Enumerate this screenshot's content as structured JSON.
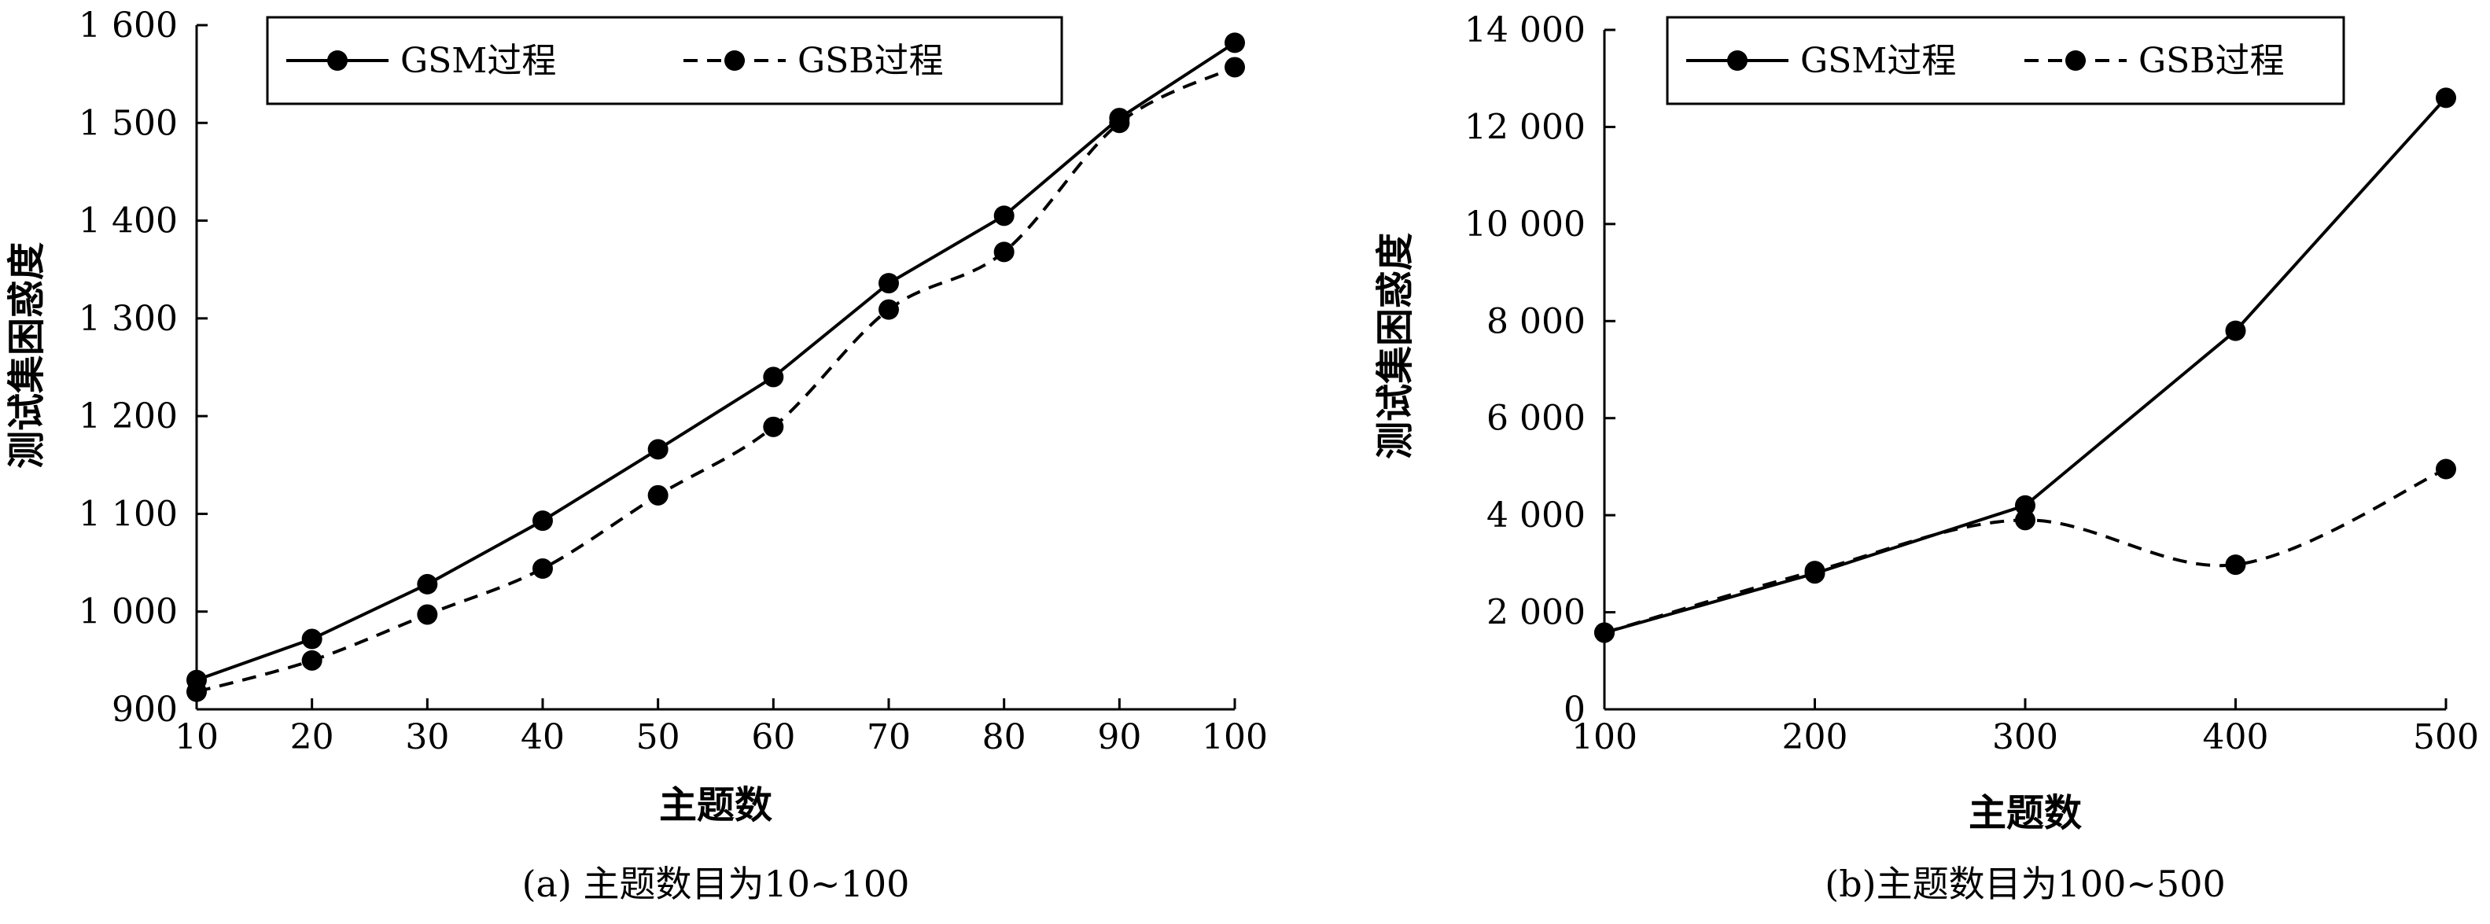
{
  "chart_data": [
    {
      "type": "line",
      "caption": "(a) 主题数目为10~100",
      "xlabel": "主题数",
      "ylabel": "测试集困惑度",
      "xlim": [
        10,
        100
      ],
      "ylim": [
        900,
        1600
      ],
      "x_ticks": [
        10,
        20,
        30,
        40,
        50,
        60,
        70,
        80,
        90,
        100
      ],
      "x_tick_labels": [
        "10",
        "20",
        "30",
        "40",
        "50",
        "60",
        "70",
        "80",
        "90",
        "100"
      ],
      "y_ticks": [
        900,
        1000,
        1100,
        1200,
        1300,
        1400,
        1500,
        1600
      ],
      "y_tick_labels": [
        "900",
        "1 000",
        "1 100",
        "1 200",
        "1 300",
        "1 400",
        "1 500",
        "1 600"
      ],
      "legend_position": "top-left",
      "x": [
        10,
        20,
        30,
        40,
        50,
        60,
        70,
        80,
        90,
        100
      ],
      "series": [
        {
          "name": "GSM过程",
          "style": "solid",
          "color": "#000000",
          "values": [
            930,
            972,
            1028,
            1093,
            1166,
            1240,
            1336,
            1405,
            1505,
            1582
          ]
        },
        {
          "name": "GSB过程",
          "style": "dashed",
          "color": "#000000",
          "values": [
            918,
            950,
            997,
            1044,
            1119,
            1189,
            1309,
            1368,
            1500,
            1557
          ]
        }
      ]
    },
    {
      "type": "line",
      "caption": "(b)主题数目为100~500",
      "xlabel": "主题数",
      "ylabel": "测试集困惑度",
      "xlim": [
        100,
        500
      ],
      "ylim": [
        0,
        14000
      ],
      "x_ticks": [
        100,
        200,
        300,
        400,
        500
      ],
      "x_tick_labels": [
        "100",
        "200",
        "300",
        "400",
        "500"
      ],
      "y_ticks": [
        0,
        2000,
        4000,
        6000,
        8000,
        10000,
        12000,
        14000
      ],
      "y_tick_labels": [
        "0",
        "2 000",
        "4 000",
        "6 000",
        "8 000",
        "10 000",
        "12 000",
        "14 000"
      ],
      "legend_position": "top-left",
      "x": [
        100,
        200,
        300,
        400,
        500
      ],
      "series": [
        {
          "name": "GSM过程",
          "style": "solid",
          "color": "#000000",
          "values": [
            1580,
            2800,
            4200,
            7800,
            12600
          ]
        },
        {
          "name": "GSB过程",
          "style": "dashed",
          "color": "#000000",
          "values": [
            1580,
            2850,
            3900,
            2980,
            4950
          ]
        }
      ]
    }
  ]
}
